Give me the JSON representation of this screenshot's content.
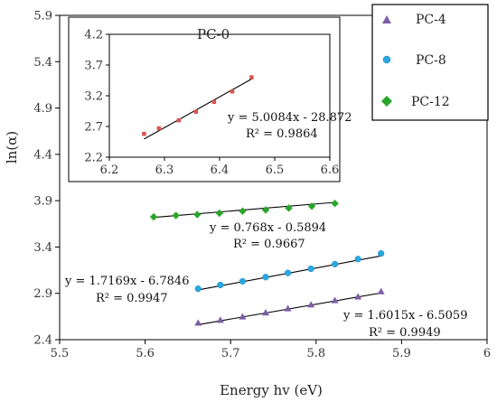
{
  "chart_data": [
    {
      "type": "scatter",
      "xlabel": "Energy hv (eV)",
      "ylabel": "ln(α)",
      "xlim": [
        5.5,
        6.0
      ],
      "ylim": [
        2.4,
        5.9
      ],
      "xticks": [
        "5.5",
        "5.6",
        "5.7",
        "5.8",
        "5.9",
        "6"
      ],
      "yticks": [
        "2.4",
        "2.9",
        "3.4",
        "3.9",
        "4.4",
        "4.9",
        "5.4",
        "5.9"
      ],
      "legend": {
        "position": "top-right"
      },
      "series": [
        {
          "name": "PC-4",
          "marker": "triangle",
          "color": "#7b5ea7",
          "x": [
            5.662,
            5.688,
            5.714,
            5.741,
            5.767,
            5.794,
            5.822,
            5.849,
            5.876
          ],
          "y": [
            2.58,
            2.61,
            2.647,
            2.69,
            2.735,
            2.776,
            2.822,
            2.862,
            2.918
          ],
          "fit": {
            "equation": "y = 1.6015x - 6.5059",
            "r2": "R² = 0.9949",
            "slope": 1.6015,
            "intercept": -6.5059,
            "x_range": [
              5.662,
              5.876
            ]
          }
        },
        {
          "name": "PC-8",
          "marker": "circle",
          "color": "#2aa8e0",
          "x": [
            5.662,
            5.688,
            5.714,
            5.741,
            5.767,
            5.794,
            5.822,
            5.849,
            5.876
          ],
          "y": [
            2.95,
            2.99,
            3.03,
            3.075,
            3.12,
            3.165,
            3.215,
            3.27,
            3.33
          ],
          "fit": {
            "equation": "y = 1.7169x - 6.7846",
            "r2": "R² = 0.9947",
            "slope": 1.7169,
            "intercept": -6.7846,
            "x_range": [
              5.662,
              5.876
            ]
          }
        },
        {
          "name": "PC-12",
          "marker": "diamond",
          "color": "#2aa52a",
          "x": [
            5.61,
            5.636,
            5.661,
            5.687,
            5.714,
            5.741,
            5.768,
            5.795,
            5.822
          ],
          "y": [
            3.725,
            3.74,
            3.75,
            3.765,
            3.787,
            3.8,
            3.82,
            3.84,
            3.87
          ],
          "fit": {
            "equation": "y = 0.768x - 0.5894",
            "r2": "R² = 0.9667",
            "slope": 0.768,
            "intercept": -0.5894,
            "x_range": [
              5.61,
              5.822
            ]
          }
        }
      ]
    },
    {
      "type": "scatter",
      "title": "PC-0",
      "xlim": [
        6.2,
        6.6
      ],
      "ylim": [
        2.2,
        4.2
      ],
      "xticks": [
        "6.2",
        "6.3",
        "6.4",
        "6.5",
        "6.6"
      ],
      "yticks": [
        "2.2",
        "2.7",
        "3.2",
        "3.7",
        "4.2"
      ],
      "series": [
        {
          "marker": "square",
          "color": "#d9534f",
          "x": [
            6.263,
            6.29,
            6.326,
            6.357,
            6.39,
            6.423,
            6.458
          ],
          "y": [
            2.58,
            2.67,
            2.8,
            2.94,
            3.1,
            3.27,
            3.5
          ],
          "fit": {
            "equation": "y = 5.0084x - 28.872",
            "r2": "R² = 0.9864",
            "slope": 5.0084,
            "intercept": -28.872,
            "x_range": [
              6.263,
              6.458
            ]
          }
        }
      ]
    }
  ]
}
